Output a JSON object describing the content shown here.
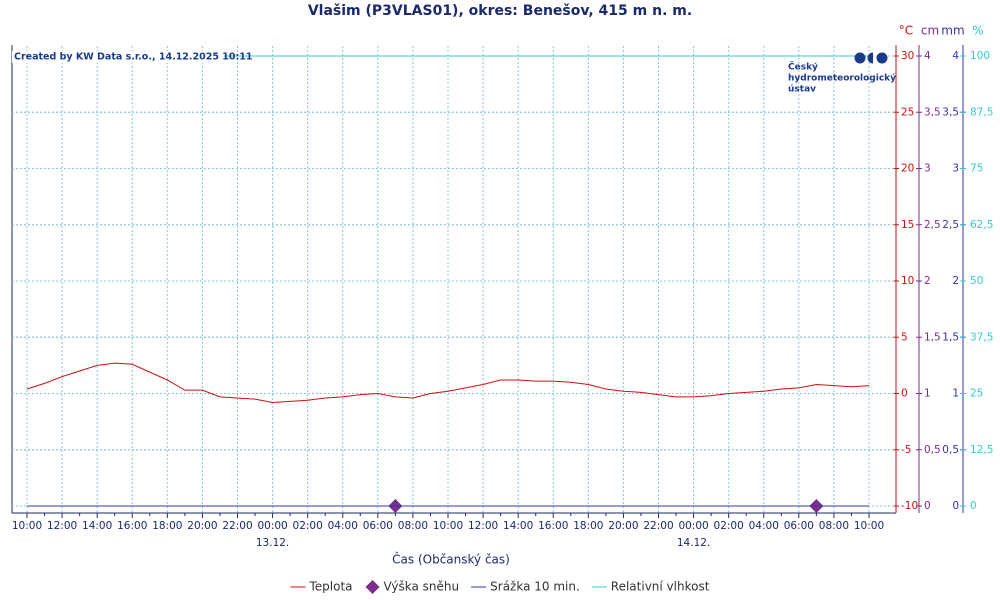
{
  "chart_data": {
    "type": "line",
    "title": "Vlašim (P3VLAS01), okres: Benešov, 415 m n. m.",
    "credit": "Created by KW Data s.r.o., 14.12.2025 10:11",
    "logo": [
      "Český",
      "hydrometeorologický",
      "ústav"
    ],
    "x_label": "Čas (Občanský čas)",
    "date_labels": [
      "13.12.",
      "14.12."
    ],
    "categories": [
      "10:00",
      null,
      "12:00",
      null,
      "14:00",
      null,
      "16:00",
      null,
      "18:00",
      null,
      "20:00",
      null,
      "22:00",
      null,
      "00:00",
      null,
      "02:00",
      null,
      "04:00",
      null,
      "06:00",
      null,
      "08:00",
      null,
      "10:00",
      null,
      "12:00",
      null,
      "14:00",
      null,
      "16:00",
      null,
      "18:00",
      null,
      "20:00",
      null,
      "22:00",
      null,
      "00:00",
      null,
      "02:00",
      null,
      "04:00",
      null,
      "06:00",
      null,
      "08:00",
      null,
      "10:00"
    ],
    "series": [
      {
        "name": "Teplota",
        "color": "#cc1111",
        "axis": "y",
        "values": [
          0.4,
          0.9,
          1.5,
          2.0,
          2.5,
          2.7,
          2.6,
          1.9,
          1.2,
          0.3,
          0.3,
          -0.3,
          -0.4,
          -0.5,
          -0.8,
          -0.7,
          -0.6,
          -0.4,
          -0.3,
          -0.1,
          0.0,
          -0.3,
          -0.4,
          0.0,
          0.2,
          0.5,
          0.8,
          1.2,
          1.2,
          1.1,
          1.1,
          1.0,
          0.8,
          0.4,
          0.2,
          0.1,
          -0.1,
          -0.3,
          -0.3,
          -0.2,
          0.0,
          0.1,
          0.2,
          0.4,
          0.5,
          0.8,
          0.7,
          0.6,
          0.7
        ]
      },
      {
        "name": "Výška sněhu",
        "color": "#7b2d8b",
        "axis": "y2",
        "marker": "diamond",
        "values": [
          null,
          null,
          null,
          null,
          null,
          null,
          null,
          null,
          null,
          null,
          null,
          null,
          null,
          null,
          null,
          null,
          null,
          null,
          null,
          null,
          null,
          0,
          null,
          null,
          null,
          null,
          null,
          null,
          null,
          null,
          null,
          null,
          null,
          null,
          null,
          null,
          null,
          null,
          null,
          null,
          null,
          null,
          null,
          null,
          null,
          0,
          null,
          null,
          null
        ]
      },
      {
        "name": "Srážka 10 min.",
        "color": "#3333aa",
        "axis": "y3",
        "values": [
          0,
          0,
          0,
          0,
          0,
          0,
          0,
          0,
          0,
          0,
          0,
          0,
          0,
          0,
          0,
          0,
          0,
          0,
          0,
          0,
          0,
          0,
          0,
          0,
          0,
          0,
          0,
          0,
          0,
          0,
          0,
          0,
          0,
          0,
          0,
          0,
          0,
          0,
          0,
          0,
          0,
          0,
          0,
          0,
          0,
          0,
          0,
          0,
          0
        ]
      },
      {
        "name": "Relativní vlhkost",
        "color": "#33cccc",
        "axis": "y4",
        "values": [
          100,
          100,
          100,
          100,
          100,
          100,
          100,
          100,
          100,
          100,
          100,
          100,
          100,
          100,
          100,
          100,
          100,
          100,
          100,
          100,
          100,
          100,
          100,
          100,
          100,
          100,
          100,
          100,
          100,
          100,
          100,
          100,
          100,
          100,
          100,
          100,
          100,
          100,
          100,
          100,
          100,
          100,
          100,
          100,
          100,
          100,
          100,
          100,
          100
        ]
      }
    ],
    "yunit": "°C",
    "ylim": [
      -10,
      30
    ],
    "yticks": [
      -10,
      -5,
      0,
      5,
      10,
      15,
      20,
      25,
      30
    ],
    "y2unit": "cm",
    "y2lim": [
      0,
      4
    ],
    "y2ticks": [
      0,
      {
        "value": 0.5,
        "label": "0,5"
      },
      1,
      {
        "value": 1.5,
        "label": "1,5"
      },
      2,
      {
        "value": 2.5,
        "label": "2,5"
      },
      3,
      {
        "value": 3.5,
        "label": "3,5"
      },
      4
    ],
    "y3unit": "mm",
    "y3lim": [
      0,
      4
    ],
    "y3ticks": [
      0,
      {
        "value": 0.5,
        "label": "0,5"
      },
      1,
      {
        "value": 1.5,
        "label": "1,5"
      },
      2,
      {
        "value": 2.5,
        "label": "2,5"
      },
      3,
      {
        "value": 3.5,
        "label": "3,5"
      },
      4
    ],
    "y4unit": "%",
    "y4lim": [
      0,
      100
    ],
    "y4ticks": [
      0,
      {
        "value": 12.5,
        "label": "12,5"
      },
      25,
      {
        "value": 37.5,
        "label": "37,5"
      },
      50,
      {
        "value": 62.5,
        "label": "62,5"
      },
      75,
      {
        "value": 87.5,
        "label": "87,5"
      },
      100
    ],
    "grid": true,
    "legend": "bottom"
  }
}
